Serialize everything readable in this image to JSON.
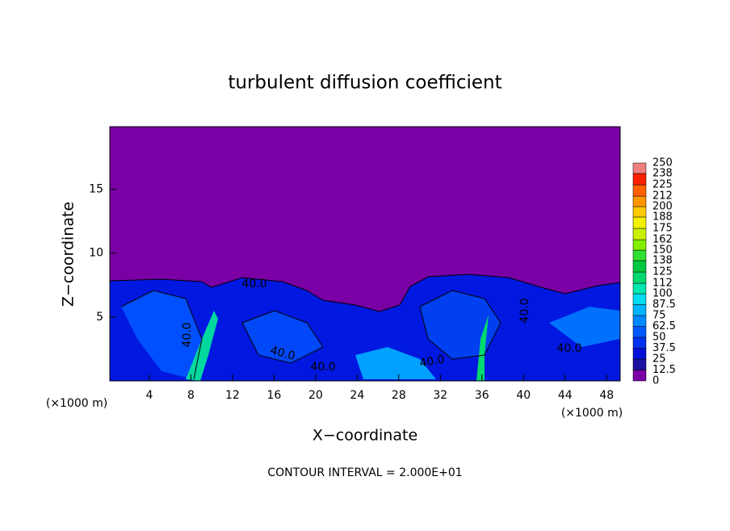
{
  "chart_data": {
    "type": "contour",
    "title": "turbulent diffusion coefficient",
    "x_label": "X−coordinate",
    "y_label": "Z−coordinate",
    "x_unit": "(×1000 m)",
    "xlim": [
      0.2,
      49.3
    ],
    "xticks": [
      4,
      8,
      12,
      16,
      20,
      24,
      28,
      32,
      36,
      40,
      44,
      48
    ],
    "ylim": [
      0,
      19.9
    ],
    "yticks": [
      5,
      10,
      15
    ],
    "background_color": "#7a00a6",
    "colorbar": {
      "levels": [
        0,
        12.5,
        25,
        37.5,
        50,
        62.5,
        75,
        87.5,
        100,
        112,
        125,
        138,
        150,
        162,
        175,
        188,
        200,
        212,
        225,
        238,
        250
      ],
      "colors": [
        "#7a00a6",
        "#1c10a0",
        "#0010d8",
        "#0030f0",
        "#0058ff",
        "#0088ff",
        "#00b4ff",
        "#00dcf0",
        "#00e8b0",
        "#00d870",
        "#00c840",
        "#30e030",
        "#80f000",
        "#c8f000",
        "#f0f000",
        "#ffc800",
        "#ff9600",
        "#ff6000",
        "#ff2000",
        "#f08080"
      ]
    },
    "contour_labels": [
      "40.0",
      "40.0",
      "40.0",
      "40.0",
      "40.0",
      "40.0",
      "40.0"
    ],
    "annotation": "CONTOUR INTERVAL = 2.000E+01"
  }
}
